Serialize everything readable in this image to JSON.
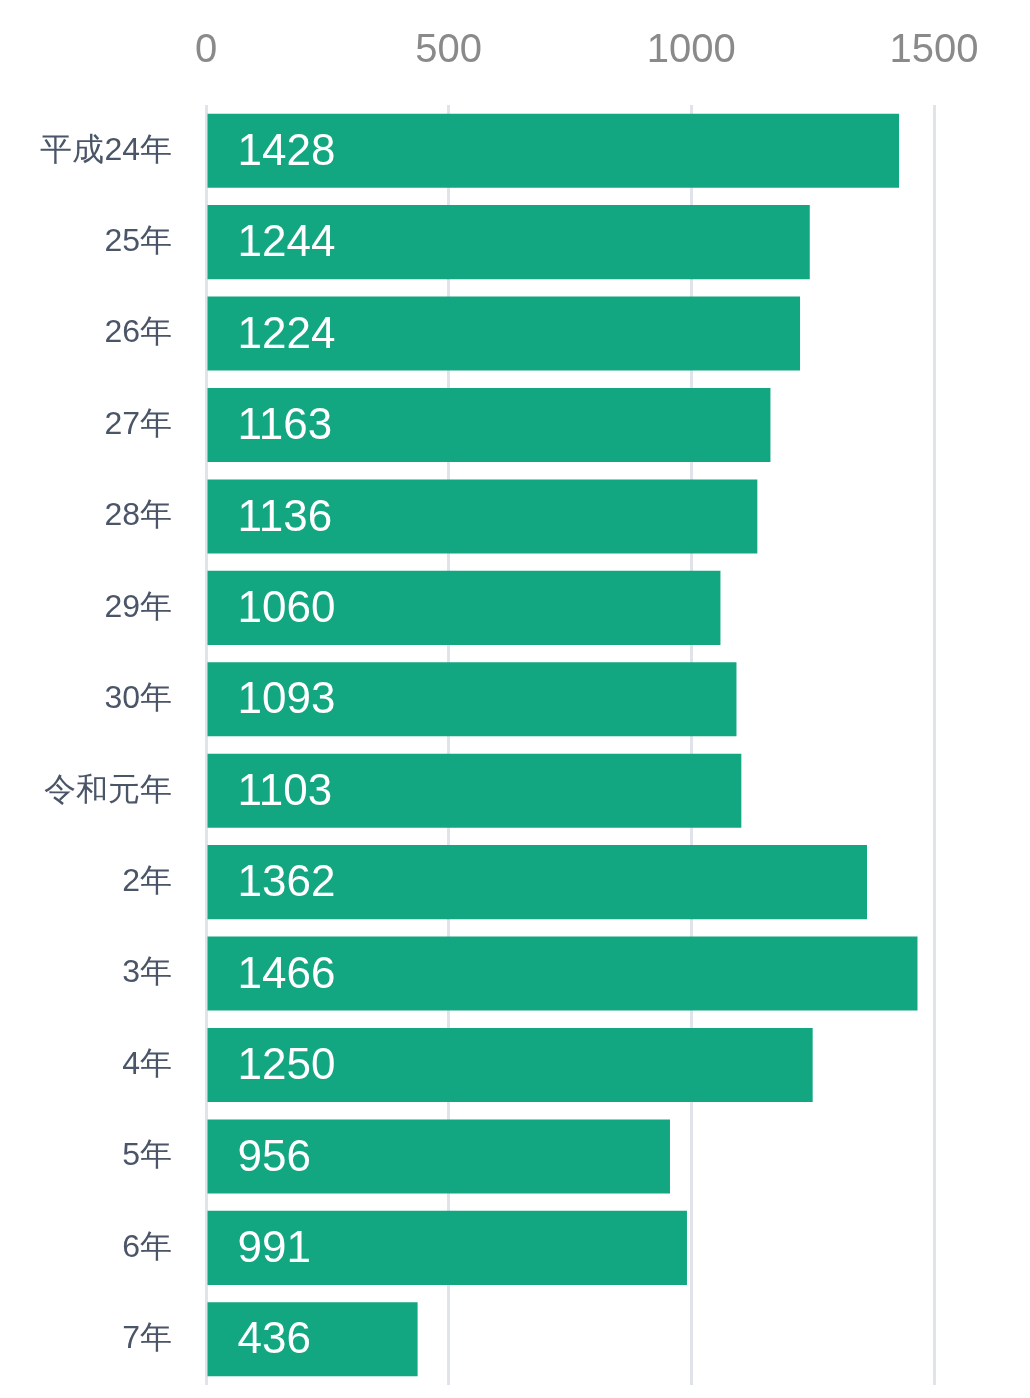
{
  "chart_data": {
    "type": "bar",
    "orientation": "horizontal",
    "categories": [
      "平成24年",
      "25年",
      "26年",
      "27年",
      "28年",
      "29年",
      "30年",
      "令和元年",
      "2年",
      "3年",
      "4年",
      "5年",
      "6年",
      "7年"
    ],
    "values": [
      1428,
      1244,
      1224,
      1163,
      1136,
      1060,
      1093,
      1103,
      1362,
      1466,
      1250,
      956,
      991,
      436
    ],
    "color": "#12a681",
    "xlim": [
      0,
      1500
    ],
    "xticks": [
      0,
      500,
      1000,
      1500
    ],
    "grid": "x",
    "data_labels": true
  }
}
